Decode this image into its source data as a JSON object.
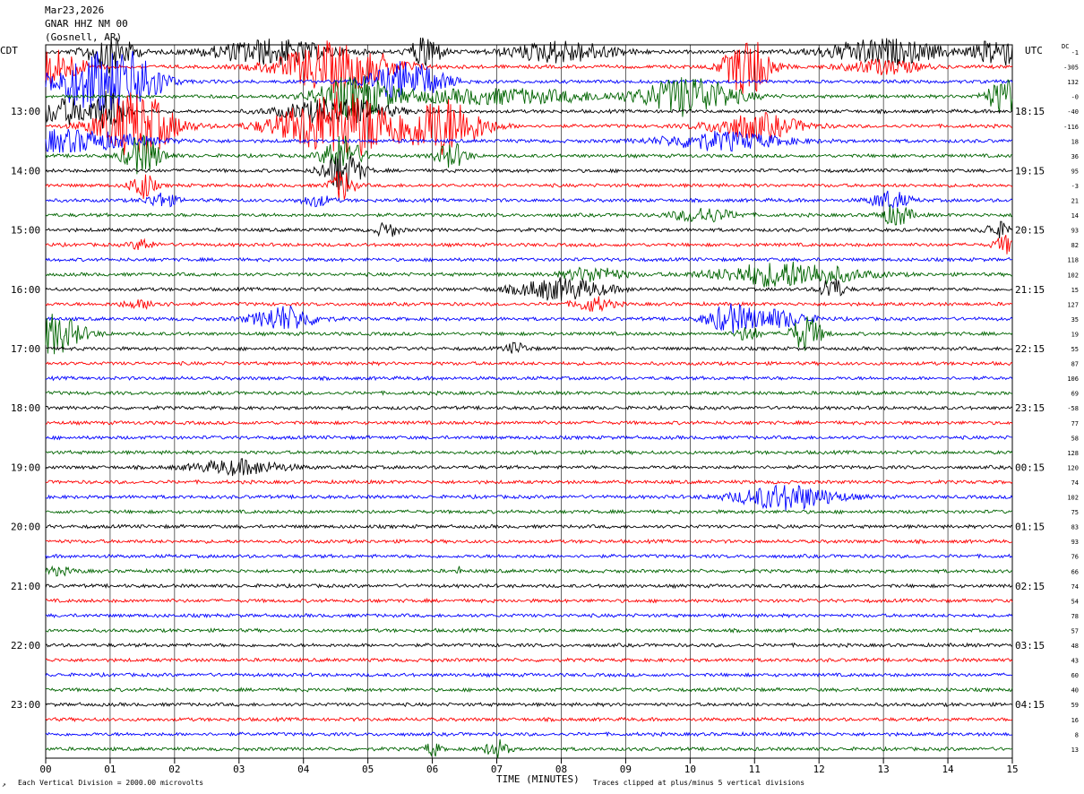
{
  "header": {
    "date": "Mar23,2026",
    "station": "GNAR HHZ NM 00",
    "location": "(Gosnell, AR)",
    "left_tz": "CDT",
    "right_tz": "UTC",
    "dc_label": "DC"
  },
  "footer": {
    "scale_note": "Each Vertical Division = 2000.00 microvolts",
    "xlabel": "TIME (MINUTES)",
    "clip_note": "Traces clipped at plus/minus 5 vertical divisions",
    "corner_mark": "↗"
  },
  "chart_data": {
    "type": "line",
    "title": "GNAR HHZ NM 00",
    "xlabel": "TIME (MINUTES)",
    "xlim": [
      0,
      15
    ],
    "x_ticks": [
      "00",
      "01",
      "02",
      "03",
      "04",
      "05",
      "06",
      "07",
      "08",
      "09",
      "10",
      "11",
      "12",
      "13",
      "14",
      "15"
    ],
    "row_count": 48,
    "row_minutes": 15,
    "colors": [
      "#000000",
      "#ff0000",
      "#0000ff",
      "#006400"
    ],
    "left_hour_labels": [
      "13:00",
      "14:00",
      "15:00",
      "16:00",
      "17:00",
      "18:00",
      "19:00",
      "20:00",
      "21:00",
      "22:00",
      "23:00"
    ],
    "right_hour_labels": [
      "18:15",
      "19:15",
      "20:15",
      "21:15",
      "22:15",
      "23:15",
      "00:15",
      "01:15",
      "02:15",
      "03:15",
      "04:15"
    ],
    "dc_offsets": [
      "-1",
      "-305",
      "132",
      "-0",
      "-40",
      "-116",
      "18",
      "36",
      "95",
      "-3",
      "21",
      "14",
      "93",
      "82",
      "118",
      "102",
      "15",
      "127",
      "35",
      "19",
      "55",
      "87",
      "106",
      "69",
      "-58",
      "77",
      "58",
      "128",
      "120",
      "74",
      "102",
      "75",
      "83",
      "93",
      "76",
      "66",
      "74",
      "54",
      "78",
      "57",
      "48",
      "43",
      "60",
      "40",
      "59",
      "16",
      "8",
      "13"
    ],
    "events": [
      {
        "row": 0,
        "t": 3.5,
        "dur": 1.6,
        "amp": 14
      },
      {
        "row": 0,
        "t": 8.0,
        "dur": 1.4,
        "amp": 12
      },
      {
        "row": 0,
        "t": 13.0,
        "dur": 1.6,
        "amp": 14
      },
      {
        "row": 0,
        "t": 14.8,
        "dur": 0.6,
        "amp": 16
      },
      {
        "row": 0,
        "t": 5.9,
        "dur": 0.4,
        "amp": 20
      },
      {
        "row": 0,
        "t": 1.0,
        "dur": 0.6,
        "amp": 22
      },
      {
        "row": 1,
        "t": 0.1,
        "dur": 0.8,
        "amp": 20
      },
      {
        "row": 1,
        "t": 4.5,
        "dur": 1.5,
        "amp": 28
      },
      {
        "row": 1,
        "t": 10.9,
        "dur": 0.6,
        "amp": 34
      },
      {
        "row": 1,
        "t": 13.0,
        "dur": 1.0,
        "amp": 8
      },
      {
        "row": 2,
        "t": 0.8,
        "dur": 1.2,
        "amp": 34
      },
      {
        "row": 2,
        "t": 5.6,
        "dur": 1.0,
        "amp": 22
      },
      {
        "row": 2,
        "t": 1.5,
        "dur": 0.6,
        "amp": 18
      },
      {
        "row": 3,
        "t": 4.8,
        "dur": 1.0,
        "amp": 22
      },
      {
        "row": 3,
        "t": 10.0,
        "dur": 1.2,
        "amp": 22
      },
      {
        "row": 3,
        "t": 14.9,
        "dur": 0.5,
        "amp": 20
      },
      {
        "row": 3,
        "t": 7.0,
        "dur": 3.0,
        "amp": 8
      },
      {
        "row": 4,
        "t": 0.3,
        "dur": 1.0,
        "amp": 14
      },
      {
        "row": 4,
        "t": 4.5,
        "dur": 1.4,
        "amp": 14
      },
      {
        "row": 4,
        "t": 1.0,
        "dur": 0.4,
        "amp": 20
      },
      {
        "row": 5,
        "t": 1.4,
        "dur": 1.0,
        "amp": 38
      },
      {
        "row": 5,
        "t": 4.6,
        "dur": 1.6,
        "amp": 38
      },
      {
        "row": 5,
        "t": 6.2,
        "dur": 1.0,
        "amp": 30
      },
      {
        "row": 5,
        "t": 11.0,
        "dur": 1.2,
        "amp": 14
      },
      {
        "row": 6,
        "t": 0.3,
        "dur": 2.0,
        "amp": 12
      },
      {
        "row": 6,
        "t": 10.5,
        "dur": 1.6,
        "amp": 10
      },
      {
        "row": 7,
        "t": 1.5,
        "dur": 0.5,
        "amp": 22
      },
      {
        "row": 7,
        "t": 4.6,
        "dur": 0.5,
        "amp": 22
      },
      {
        "row": 7,
        "t": 6.3,
        "dur": 0.4,
        "amp": 14
      },
      {
        "row": 8,
        "t": 4.6,
        "dur": 0.5,
        "amp": 24
      },
      {
        "row": 9,
        "t": 1.5,
        "dur": 0.3,
        "amp": 16
      },
      {
        "row": 9,
        "t": 4.6,
        "dur": 0.3,
        "amp": 18
      },
      {
        "row": 10,
        "t": 1.8,
        "dur": 0.4,
        "amp": 8
      },
      {
        "row": 10,
        "t": 4.2,
        "dur": 0.4,
        "amp": 6
      },
      {
        "row": 10,
        "t": 13.1,
        "dur": 0.5,
        "amp": 10
      },
      {
        "row": 11,
        "t": 10.2,
        "dur": 0.8,
        "amp": 8
      },
      {
        "row": 11,
        "t": 13.2,
        "dur": 0.4,
        "amp": 12
      },
      {
        "row": 12,
        "t": 5.3,
        "dur": 0.3,
        "amp": 8
      },
      {
        "row": 12,
        "t": 14.8,
        "dur": 0.4,
        "amp": 8
      },
      {
        "row": 13,
        "t": 1.5,
        "dur": 0.3,
        "amp": 6
      },
      {
        "row": 13,
        "t": 14.9,
        "dur": 0.3,
        "amp": 10
      },
      {
        "row": 15,
        "t": 8.5,
        "dur": 0.8,
        "amp": 8
      },
      {
        "row": 15,
        "t": 11.5,
        "dur": 1.8,
        "amp": 14
      },
      {
        "row": 16,
        "t": 8.0,
        "dur": 1.2,
        "amp": 12
      },
      {
        "row": 16,
        "t": 12.2,
        "dur": 0.3,
        "amp": 14
      },
      {
        "row": 17,
        "t": 8.5,
        "dur": 0.5,
        "amp": 8
      },
      {
        "row": 17,
        "t": 1.5,
        "dur": 0.6,
        "amp": 4
      },
      {
        "row": 18,
        "t": 3.7,
        "dur": 0.8,
        "amp": 14
      },
      {
        "row": 18,
        "t": 10.6,
        "dur": 0.6,
        "amp": 14
      },
      {
        "row": 18,
        "t": 11.3,
        "dur": 0.9,
        "amp": 10
      },
      {
        "row": 19,
        "t": 0.1,
        "dur": 0.8,
        "amp": 22
      },
      {
        "row": 19,
        "t": 11.8,
        "dur": 0.4,
        "amp": 20
      },
      {
        "row": 19,
        "t": 10.9,
        "dur": 0.3,
        "amp": 8
      },
      {
        "row": 20,
        "t": 7.3,
        "dur": 0.3,
        "amp": 6
      },
      {
        "row": 28,
        "t": 3.0,
        "dur": 1.2,
        "amp": 8
      },
      {
        "row": 30,
        "t": 11.5,
        "dur": 1.3,
        "amp": 14
      },
      {
        "row": 35,
        "t": 0.1,
        "dur": 0.6,
        "amp": 4
      },
      {
        "row": 35,
        "t": 6.4,
        "dur": 0.05,
        "amp": 6
      },
      {
        "row": 47,
        "t": 6.0,
        "dur": 0.2,
        "amp": 8
      },
      {
        "row": 47,
        "t": 7.0,
        "dur": 0.3,
        "amp": 10
      }
    ]
  }
}
